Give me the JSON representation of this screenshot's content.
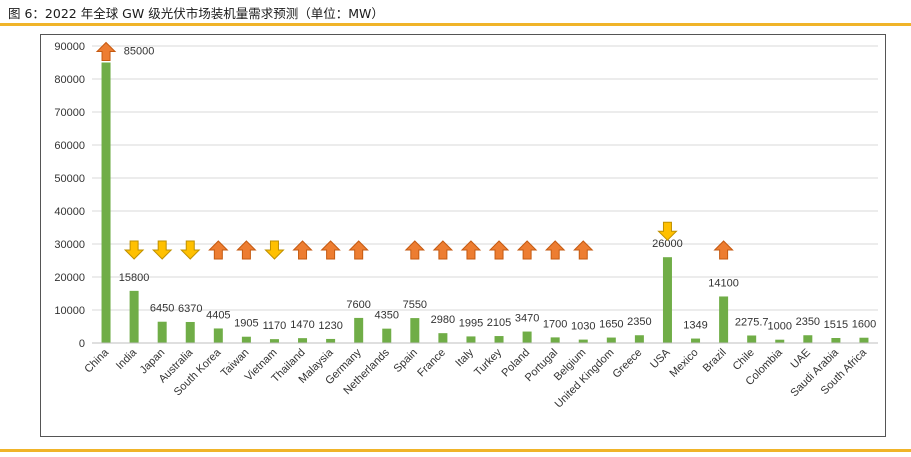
{
  "figure": {
    "title": "图 6：2022 年全球 GW 级光伏市场装机量需求预测（单位：MW）"
  },
  "colors": {
    "bar": "#70ad47",
    "arrow_up_fill": "#ed7d31",
    "arrow_up_stroke": "#c55a11",
    "arrow_down_fill": "#ffc000",
    "arrow_down_stroke": "#bf9000",
    "rule": "#f0b429",
    "grid": "#d9d9d9"
  },
  "chart_data": {
    "type": "bar",
    "title": "",
    "xlabel": "",
    "ylabel": "",
    "ylim": [
      0,
      90000
    ],
    "yticks": [
      0,
      10000,
      20000,
      30000,
      40000,
      50000,
      60000,
      70000,
      80000,
      90000
    ],
    "grid": true,
    "legend": "none",
    "categories": [
      "China",
      "India",
      "Japan",
      "Australia",
      "South Korea",
      "Taiwan",
      "Vietnam",
      "Thailand",
      "Malaysia",
      "Germany",
      "Netherlands",
      "Spain",
      "France",
      "Italy",
      "Turkey",
      "Poland",
      "Portugal",
      "Belgium",
      "United Kingdom",
      "Greece",
      "USA",
      "Mexico",
      "Brazil",
      "Chile",
      "Colombia",
      "UAE",
      "Saudi Arabia",
      "South Africa"
    ],
    "values": [
      85000,
      15800,
      6450,
      6370,
      4405,
      1905,
      1170,
      1470,
      1230,
      7600,
      4350,
      7550,
      2980,
      1995,
      2105,
      3470,
      1700,
      1030,
      1650,
      2350,
      26000,
      1349,
      14100,
      2275.7,
      1000,
      2350,
      1515,
      1600
    ],
    "data_labels": [
      "85000",
      "15800",
      "6450",
      "6370",
      "4405",
      "1905",
      "1170",
      "1470",
      "1230",
      "7600",
      "4350",
      "7550",
      "2980",
      "1995",
      "2105",
      "3470",
      "1700",
      "1030",
      "1650",
      "2350",
      "26000",
      "1349",
      "14100",
      "2275.7",
      "1000",
      "2350",
      "1515",
      "1600"
    ],
    "trend_arrows": [
      "up",
      "down",
      "down",
      "down",
      "up",
      "up",
      "down",
      "up",
      "up",
      "up",
      "",
      "up",
      "up",
      "up",
      "up",
      "up",
      "up",
      "up",
      "",
      "",
      "down",
      "",
      "up",
      "",
      "",
      "",
      "",
      ""
    ]
  }
}
